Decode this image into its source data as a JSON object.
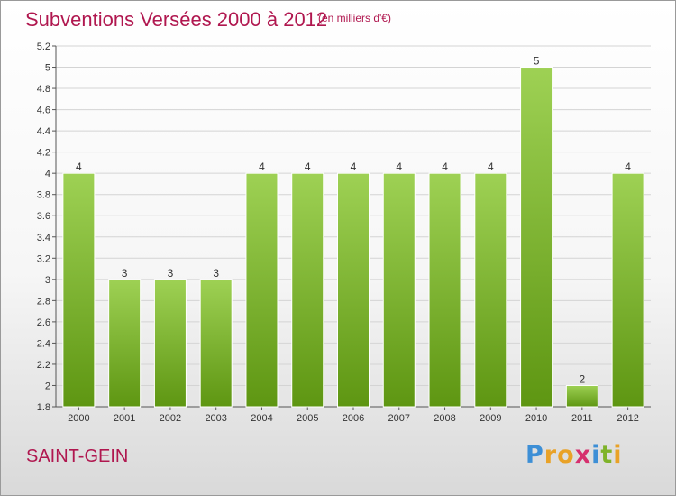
{
  "header": {
    "title": "Subventions Versées 2000 à 2012",
    "subtitle": "(en milliers d'€)"
  },
  "footer": {
    "commune": "SAINT-GEIN",
    "logo_letters": [
      "P",
      "r",
      "o",
      "x",
      "i",
      "t",
      "i"
    ],
    "logo_colors": [
      "#3d8fd6",
      "#e9a227",
      "#e9a227",
      "#d6306e",
      "#3d8fd6",
      "#7fb32a",
      "#e9a227"
    ]
  },
  "colors": {
    "bar_top": "#9ed154",
    "bar_bottom": "#5e9612",
    "accent": "#b0174f",
    "grid": "#d4d4d4"
  },
  "chart_data": {
    "type": "bar",
    "title": "Subventions Versées 2000 à 2012",
    "subtitle": "(en milliers d'€)",
    "xlabel": "",
    "ylabel": "",
    "categories": [
      "2000",
      "2001",
      "2002",
      "2003",
      "2004",
      "2005",
      "2006",
      "2007",
      "2008",
      "2009",
      "2010",
      "2011",
      "2012"
    ],
    "values": [
      4,
      3,
      3,
      3,
      4,
      4,
      4,
      4,
      4,
      4,
      5,
      2,
      4
    ],
    "data_labels": [
      "4",
      "3",
      "3",
      "3",
      "4",
      "4",
      "4",
      "4",
      "4",
      "4",
      "5",
      "2",
      "4"
    ],
    "ylim": [
      1.8,
      5.2
    ],
    "yticks": [
      1.8,
      2,
      2.2,
      2.4,
      2.6,
      2.8,
      3,
      3.2,
      3.4,
      3.6,
      3.8,
      4,
      4.2,
      4.4,
      4.6,
      4.8,
      5,
      5.2
    ],
    "ytick_labels": [
      "1.8",
      "2",
      "2.2",
      "2.4",
      "2.6",
      "2.8",
      "3",
      "3.2",
      "3.4",
      "3.6",
      "3.8",
      "4",
      "4.2",
      "4.4",
      "4.6",
      "4.8",
      "5",
      "5.2"
    ],
    "grid": true,
    "legend": "none"
  }
}
